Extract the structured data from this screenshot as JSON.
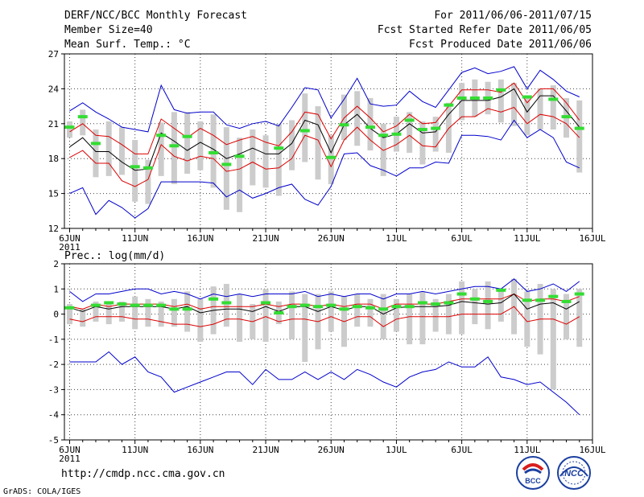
{
  "header": {
    "title": "DERF/NCC/BCC Monthly Forecast",
    "member_size": "Member Size=40",
    "variable": "Mean Surf. Temp.: °C",
    "period": "For 2011/06/06-2011/07/15",
    "start_date": "Fcst Started Refer Date 2011/06/05",
    "produced_date": "Fcst Produced Date 2011/06/06"
  },
  "footer": {
    "url": "http://cmdp.ncc.cma.gov.cn",
    "credit": "GrADS: COLA/IGES",
    "logo_bcc": "BCC",
    "logo_ncc": "NCC"
  },
  "colors": {
    "envelope": "#0000cc",
    "spread": "#dd0000",
    "mean": "#000000",
    "box": "#cccccc",
    "marker": "#33dd33"
  },
  "chart_data": [
    {
      "type": "line",
      "id": "temperature",
      "title": "Mean Surf. Temp.: °C",
      "ylabel": "°C",
      "ylim": [
        12,
        27
      ],
      "yticks": [
        12,
        15,
        18,
        21,
        24,
        27
      ],
      "xticks": [
        {
          "day": 1,
          "label": "6JUN",
          "sub": "2011"
        },
        {
          "day": 6,
          "label": "11JUN"
        },
        {
          "day": 11,
          "label": "16JUN"
        },
        {
          "day": 16,
          "label": "21JUN"
        },
        {
          "day": 21,
          "label": "26JUN"
        },
        {
          "day": 26,
          "label": "1JUL"
        },
        {
          "day": 31,
          "label": "6JUL"
        },
        {
          "day": 36,
          "label": "11JUL"
        },
        {
          "day": 41,
          "label": "16JUL"
        }
      ],
      "xlim": [
        0.6,
        41
      ],
      "days": [
        1,
        2,
        3,
        4,
        5,
        6,
        7,
        8,
        9,
        10,
        11,
        12,
        13,
        14,
        15,
        16,
        17,
        18,
        19,
        20,
        21,
        22,
        23,
        24,
        25,
        26,
        27,
        28,
        29,
        30,
        31,
        32,
        33,
        34,
        35,
        36,
        37,
        38,
        39,
        40
      ],
      "series": [
        {
          "name": "max",
          "values": [
            22.1,
            22.8,
            22.0,
            21.4,
            20.7,
            20.5,
            20.3,
            24.3,
            22.2,
            21.9,
            22.0,
            22.0,
            20.9,
            20.6,
            21.0,
            21.2,
            20.8,
            22.4,
            24.1,
            23.9,
            21.5,
            23.1,
            24.9,
            22.7,
            22.5,
            22.6,
            23.8,
            22.9,
            22.4,
            23.9,
            25.4,
            25.8,
            25.3,
            25.5,
            25.9,
            24.0,
            25.6,
            24.8,
            23.8,
            23.3
          ]
        },
        {
          "name": "upper",
          "values": [
            20.3,
            21.0,
            20.0,
            19.9,
            19.2,
            18.4,
            18.4,
            21.4,
            20.6,
            19.8,
            20.6,
            20.0,
            19.2,
            19.6,
            19.9,
            19.4,
            19.1,
            20.3,
            22.0,
            21.8,
            19.7,
            21.5,
            22.5,
            21.5,
            20.3,
            20.8,
            21.8,
            21.0,
            21.1,
            22.5,
            23.9,
            23.9,
            23.9,
            23.7,
            24.5,
            22.8,
            24.0,
            24.0,
            22.8,
            21.3
          ]
        },
        {
          "name": "mean",
          "values": [
            19.0,
            19.8,
            18.6,
            18.6,
            17.7,
            17.0,
            17.1,
            20.2,
            19.5,
            18.7,
            19.4,
            18.8,
            18.0,
            18.4,
            18.9,
            18.4,
            18.4,
            19.3,
            21.3,
            20.9,
            18.5,
            20.9,
            21.8,
            20.6,
            19.8,
            20.1,
            21.0,
            20.2,
            20.3,
            21.8,
            23.0,
            23.0,
            23.0,
            23.3,
            24.0,
            22.0,
            23.4,
            23.4,
            22.1,
            20.7
          ]
        },
        {
          "name": "lower",
          "values": [
            18.1,
            18.7,
            17.6,
            17.6,
            16.1,
            15.6,
            16.2,
            19.2,
            18.2,
            17.8,
            18.2,
            18.0,
            16.9,
            17.1,
            17.7,
            17.1,
            17.2,
            18.0,
            20.0,
            19.6,
            17.3,
            19.6,
            20.7,
            19.6,
            18.7,
            19.2,
            20.0,
            19.1,
            19.0,
            20.6,
            21.6,
            21.6,
            22.3,
            22.0,
            22.4,
            21.0,
            21.8,
            21.6,
            21.0,
            19.8
          ]
        },
        {
          "name": "min",
          "values": [
            15.0,
            15.5,
            13.2,
            14.4,
            13.8,
            12.9,
            13.7,
            16.0,
            16.0,
            16.0,
            16.0,
            15.9,
            14.7,
            15.3,
            14.6,
            15.0,
            15.5,
            15.8,
            14.5,
            14.0,
            15.6,
            18.4,
            18.5,
            17.4,
            17.0,
            16.5,
            17.2,
            17.2,
            17.7,
            17.6,
            20.0,
            20.0,
            19.9,
            19.6,
            21.3,
            19.8,
            20.5,
            19.8,
            17.7,
            17.2
          ]
        }
      ],
      "boxes": [
        {
          "low": 19.8,
          "high": 21.2
        },
        {
          "low": 20.0,
          "high": 22.2
        },
        {
          "low": 16.4,
          "high": 20.5
        },
        {
          "low": 16.5,
          "high": 21.2
        },
        {
          "low": 16.6,
          "high": 20.7
        },
        {
          "low": 14.3,
          "high": 19.6
        },
        {
          "low": 14.1,
          "high": 17.9
        },
        {
          "low": 16.5,
          "high": 21.1
        },
        {
          "low": 15.8,
          "high": 22.0
        },
        {
          "low": 16.7,
          "high": 22.0
        },
        {
          "low": 17.0,
          "high": 21.2
        },
        {
          "low": 15.5,
          "high": 21.8
        },
        {
          "low": 13.6,
          "high": 20.7
        },
        {
          "low": 13.4,
          "high": 19.8
        },
        {
          "low": 15.7,
          "high": 20.5
        },
        {
          "low": 15.5,
          "high": 20.0
        },
        {
          "low": 14.8,
          "high": 21.0
        },
        {
          "low": 17.0,
          "high": 21.3
        },
        {
          "low": 17.7,
          "high": 23.6
        },
        {
          "low": 16.2,
          "high": 22.5
        },
        {
          "low": 15.8,
          "high": 20.0
        },
        {
          "low": 19.6,
          "high": 23.5
        },
        {
          "low": 19.1,
          "high": 23.8
        },
        {
          "low": 18.7,
          "high": 23.2
        },
        {
          "low": 16.5,
          "high": 21.0
        },
        {
          "low": 18.6,
          "high": 21.6
        },
        {
          "low": 18.5,
          "high": 22.0
        },
        {
          "low": 17.5,
          "high": 21.2
        },
        {
          "low": 18.6,
          "high": 21.6
        },
        {
          "low": 18.5,
          "high": 22.8
        },
        {
          "low": 21.3,
          "high": 24.5
        },
        {
          "low": 21.6,
          "high": 24.8
        },
        {
          "low": 21.8,
          "high": 24.6
        },
        {
          "low": 21.1,
          "high": 24.8
        },
        {
          "low": 20.8,
          "high": 24.5
        },
        {
          "low": 20.0,
          "high": 23.3
        },
        {
          "low": 20.5,
          "high": 24.0
        },
        {
          "low": 20.5,
          "high": 24.3
        },
        {
          "low": 19.8,
          "high": 23.2
        },
        {
          "low": 16.8,
          "high": 23.0
        }
      ],
      "markers": [
        20.7,
        21.6,
        19.3,
        null,
        null,
        17.3,
        17.2,
        20.0,
        19.1,
        19.9,
        null,
        18.5,
        17.5,
        18.2,
        null,
        null,
        18.9,
        null,
        20.4,
        null,
        18.1,
        20.9,
        null,
        20.7,
        20.0,
        20.1,
        21.3,
        20.5,
        20.6,
        22.6,
        23.2,
        23.2,
        23.2,
        23.9,
        null,
        23.3,
        null,
        23.1,
        21.6,
        20.6
      ]
    },
    {
      "type": "line",
      "id": "precipitation",
      "title": "Prec.: log(mm/d)",
      "ylabel": "log(mm/d)",
      "ylim": [
        -5,
        2
      ],
      "yticks": [
        -5,
        -4,
        -3,
        -2,
        -1,
        0,
        1,
        2
      ],
      "xticks": [
        {
          "day": 1,
          "label": "6JUN",
          "sub": "2011"
        },
        {
          "day": 6,
          "label": "11JUN"
        },
        {
          "day": 11,
          "label": "16JUN"
        },
        {
          "day": 16,
          "label": "21JUN"
        },
        {
          "day": 21,
          "label": "26JUN"
        },
        {
          "day": 26,
          "label": "1JUL"
        },
        {
          "day": 31,
          "label": "6JUL"
        },
        {
          "day": 36,
          "label": "11JUL"
        },
        {
          "day": 41,
          "label": "16JUL"
        }
      ],
      "xlim": [
        0.6,
        41
      ],
      "days": [
        1,
        2,
        3,
        4,
        5,
        6,
        7,
        8,
        9,
        10,
        11,
        12,
        13,
        14,
        15,
        16,
        17,
        18,
        19,
        20,
        21,
        22,
        23,
        24,
        25,
        26,
        27,
        28,
        29,
        30,
        31,
        32,
        33,
        34,
        35,
        36,
        37,
        38,
        39,
        40
      ],
      "series": [
        {
          "name": "max",
          "values": [
            0.9,
            0.5,
            0.8,
            0.8,
            0.9,
            1.0,
            1.0,
            0.8,
            0.9,
            0.8,
            0.6,
            0.8,
            0.7,
            0.8,
            0.7,
            0.8,
            0.8,
            0.8,
            0.9,
            0.7,
            0.8,
            0.7,
            0.8,
            0.8,
            0.6,
            0.8,
            0.8,
            0.9,
            0.8,
            0.9,
            1.0,
            1.1,
            1.1,
            1.0,
            1.4,
            0.9,
            1.0,
            1.2,
            0.9,
            1.3
          ]
        },
        {
          "name": "upper",
          "values": [
            0.3,
            0.2,
            0.4,
            0.3,
            0.4,
            0.4,
            0.4,
            0.4,
            0.3,
            0.4,
            0.2,
            0.3,
            0.3,
            0.3,
            0.3,
            0.4,
            0.3,
            0.4,
            0.4,
            0.3,
            0.4,
            0.3,
            0.4,
            0.4,
            0.2,
            0.4,
            0.4,
            0.4,
            0.4,
            0.5,
            0.6,
            0.6,
            0.6,
            0.6,
            0.8,
            0.5,
            0.6,
            0.6,
            0.5,
            0.7
          ]
        },
        {
          "name": "mean",
          "values": [
            0.25,
            0.1,
            0.3,
            0.2,
            0.3,
            0.3,
            0.3,
            0.3,
            0.2,
            0.3,
            0.05,
            0.15,
            0.2,
            0.2,
            0.1,
            0.3,
            0.1,
            0.3,
            0.3,
            0.1,
            0.3,
            0.15,
            0.3,
            0.3,
            0.0,
            0.25,
            0.3,
            0.3,
            0.3,
            0.35,
            0.5,
            0.45,
            0.4,
            0.45,
            0.8,
            0.2,
            0.4,
            0.45,
            0.2,
            0.5
          ]
        },
        {
          "name": "lower",
          "values": [
            -0.2,
            -0.3,
            -0.1,
            -0.1,
            -0.1,
            -0.2,
            -0.2,
            -0.3,
            -0.4,
            -0.4,
            -0.5,
            -0.4,
            -0.2,
            -0.2,
            -0.3,
            -0.1,
            -0.3,
            -0.2,
            -0.2,
            -0.3,
            -0.1,
            -0.3,
            -0.1,
            -0.1,
            -0.5,
            -0.2,
            -0.1,
            -0.1,
            -0.1,
            -0.1,
            0.0,
            0.0,
            0.0,
            0.0,
            0.3,
            -0.3,
            -0.2,
            -0.2,
            -0.4,
            -0.1
          ]
        },
        {
          "name": "min",
          "values": [
            -1.9,
            -1.9,
            -1.9,
            -1.5,
            -2.0,
            -1.7,
            -2.3,
            -2.5,
            -3.1,
            -2.9,
            -2.7,
            -2.5,
            -2.3,
            -2.3,
            -2.8,
            -2.2,
            -2.6,
            -2.6,
            -2.3,
            -2.6,
            -2.3,
            -2.6,
            -2.2,
            -2.4,
            -2.7,
            -2.9,
            -2.5,
            -2.3,
            -2.2,
            -1.9,
            -2.1,
            -2.1,
            -1.7,
            -2.5,
            -2.6,
            -2.8,
            -2.7,
            -3.1,
            -3.5,
            -4.0
          ]
        }
      ],
      "boxes": [
        {
          "low": -0.4,
          "high": 0.4
        },
        {
          "low": -0.5,
          "high": 0.2
        },
        {
          "low": -0.3,
          "high": 0.5
        },
        {
          "low": -0.4,
          "high": 0.5
        },
        {
          "low": -0.3,
          "high": 0.5
        },
        {
          "low": -0.6,
          "high": 0.7
        },
        {
          "low": -0.5,
          "high": 0.6
        },
        {
          "low": -0.5,
          "high": 0.5
        },
        {
          "low": -0.5,
          "high": 0.6
        },
        {
          "low": -0.7,
          "high": 0.9
        },
        {
          "low": -1.1,
          "high": 0.6
        },
        {
          "low": -0.8,
          "high": 1.1
        },
        {
          "low": -0.5,
          "high": 1.2
        },
        {
          "low": -1.1,
          "high": 0.8
        },
        {
          "low": -1.0,
          "high": 0.4
        },
        {
          "low": -1.1,
          "high": 1.0
        },
        {
          "low": -0.4,
          "high": 0.5
        },
        {
          "low": -1.0,
          "high": 0.9
        },
        {
          "low": -1.9,
          "high": 0.8
        },
        {
          "low": -1.4,
          "high": 0.8
        },
        {
          "low": -0.7,
          "high": 0.9
        },
        {
          "low": -1.3,
          "high": 0.7
        },
        {
          "low": -0.5,
          "high": 0.8
        },
        {
          "low": -0.5,
          "high": 0.6
        },
        {
          "low": -1.0,
          "high": 0.8
        },
        {
          "low": -0.7,
          "high": 0.6
        },
        {
          "low": -1.2,
          "high": 0.8
        },
        {
          "low": -1.2,
          "high": 0.9
        },
        {
          "low": -0.7,
          "high": 0.6
        },
        {
          "low": -0.8,
          "high": 0.8
        },
        {
          "low": -0.8,
          "high": 1.3
        },
        {
          "low": -0.4,
          "high": 1.0
        },
        {
          "low": -0.6,
          "high": 1.3
        },
        {
          "low": -0.3,
          "high": 0.9
        },
        {
          "low": -0.8,
          "high": 1.4
        },
        {
          "low": -1.3,
          "high": 0.9
        },
        {
          "low": -1.6,
          "high": 1.2
        },
        {
          "low": -3.0,
          "high": 1.0
        },
        {
          "low": -1.0,
          "high": 0.8
        },
        {
          "low": -1.3,
          "high": 1.0
        }
      ],
      "markers": [
        0.25,
        null,
        0.35,
        0.45,
        0.4,
        0.35,
        0.35,
        0.35,
        0.2,
        0.2,
        null,
        0.6,
        0.45,
        null,
        null,
        0.45,
        0.05,
        0.3,
        0.35,
        0.3,
        0.35,
        0.2,
        0.3,
        0.25,
        0.2,
        0.3,
        0.3,
        0.45,
        0.4,
        0.45,
        0.8,
        0.6,
        0.5,
        0.95,
        null,
        0.55,
        0.55,
        0.7,
        0.5,
        0.8
      ]
    }
  ]
}
